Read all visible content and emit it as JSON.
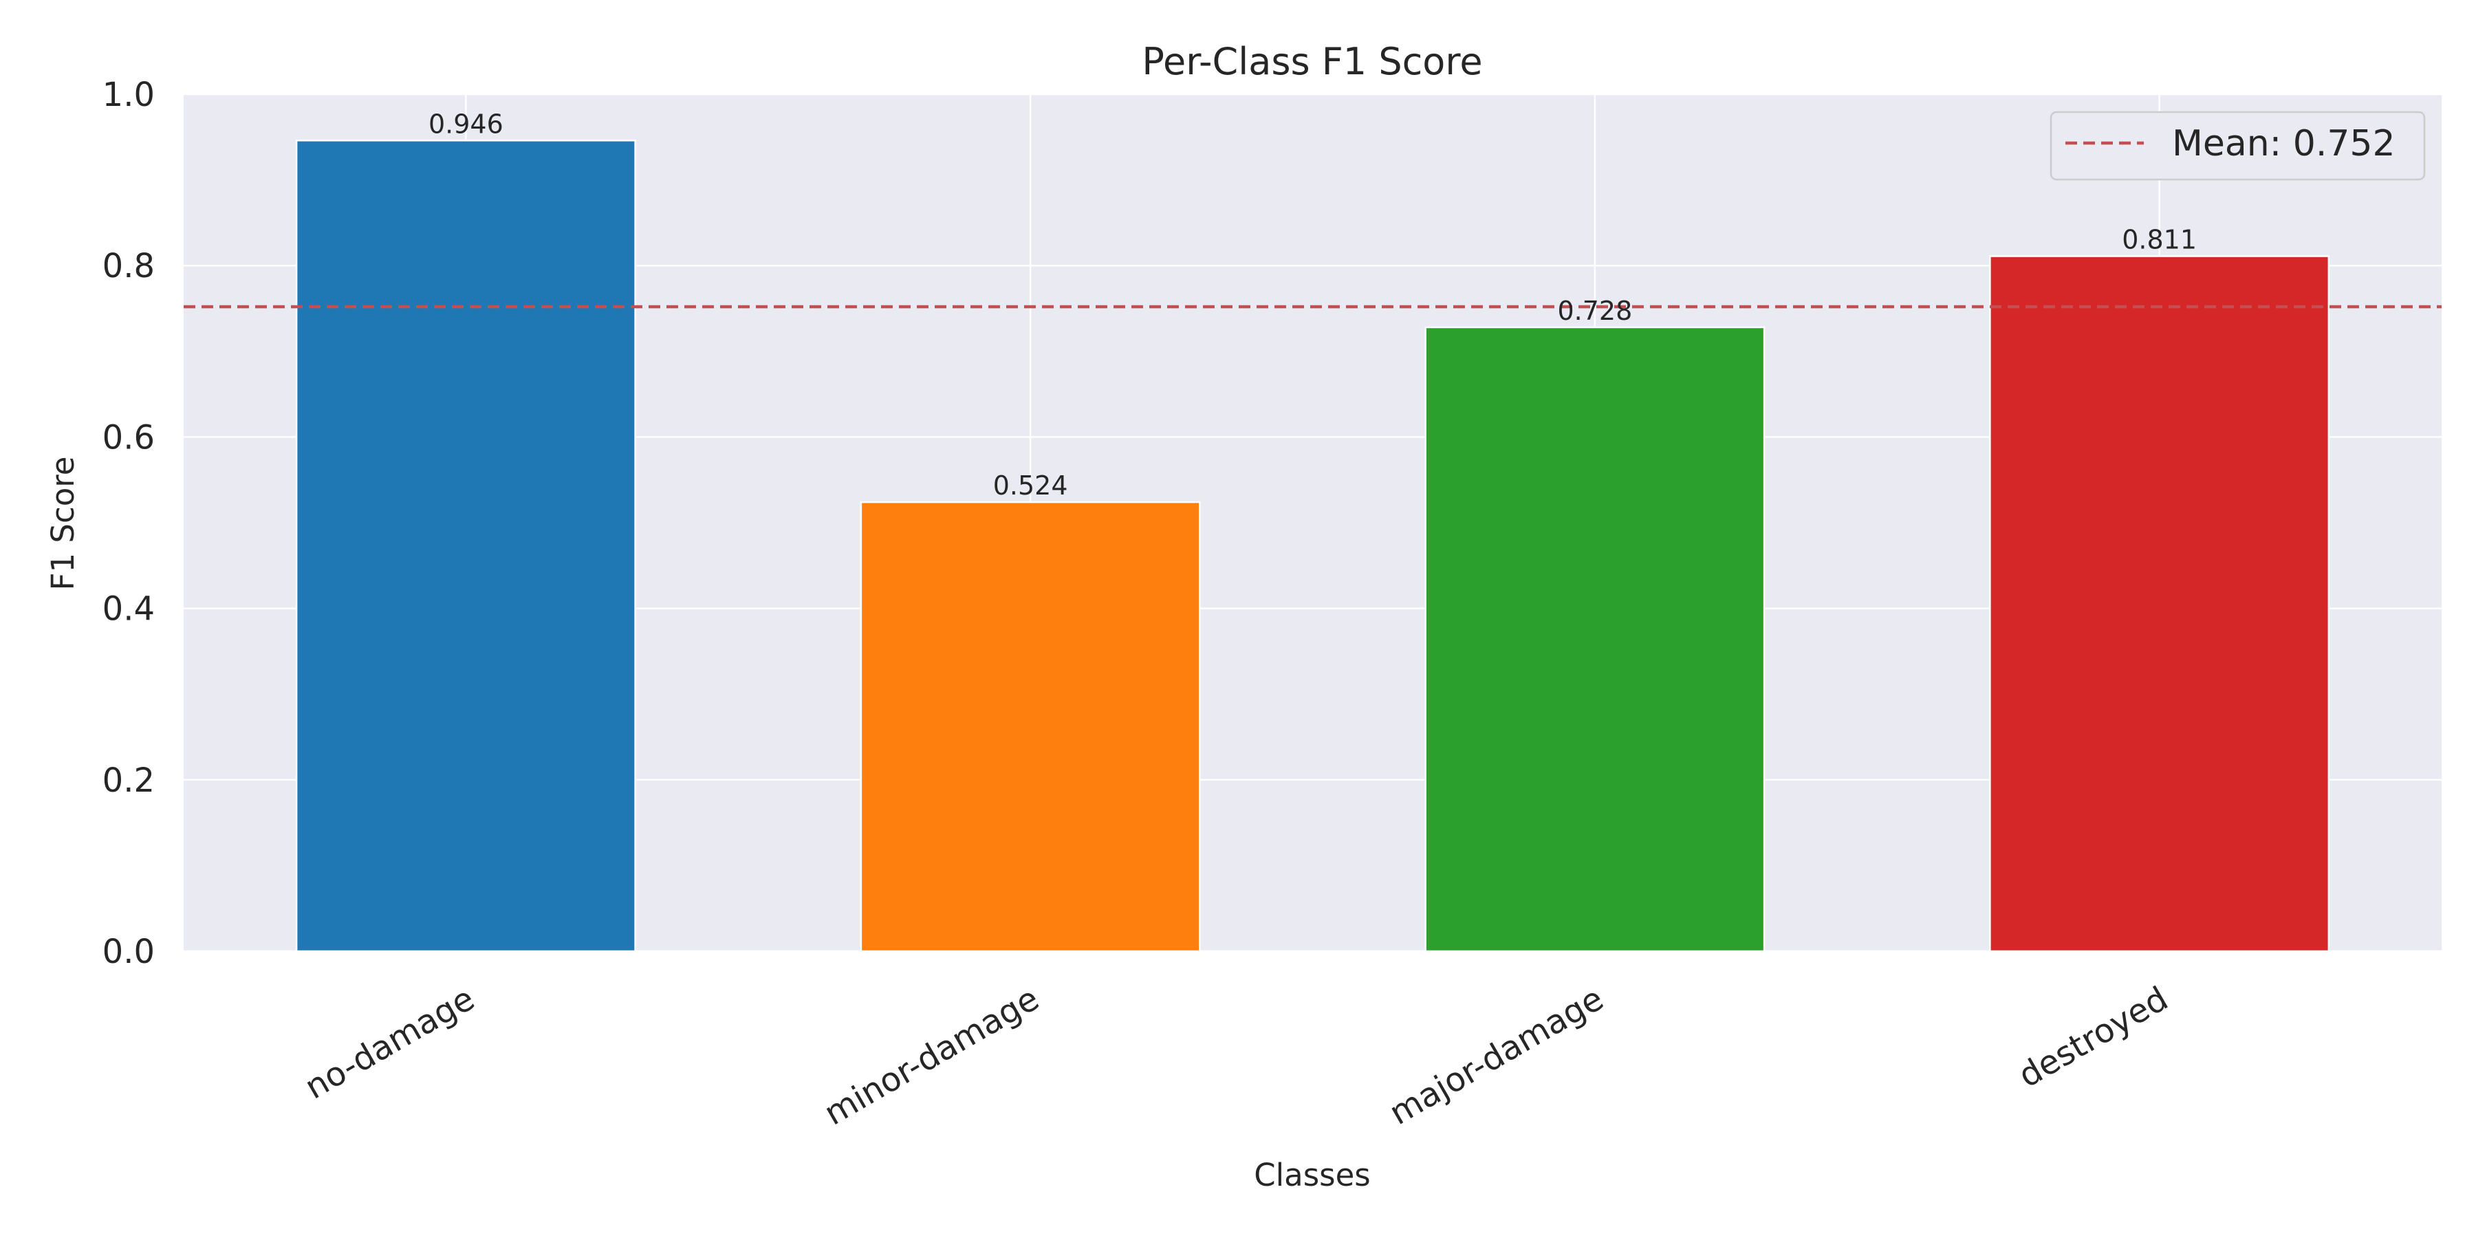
{
  "chart_data": {
    "type": "bar",
    "title": "Per-Class F1 Score",
    "xlabel": "Classes",
    "ylabel": "F1 Score",
    "categories": [
      "no-damage",
      "minor-damage",
      "major-damage",
      "destroyed"
    ],
    "values": [
      0.946,
      0.524,
      0.728,
      0.811
    ],
    "value_labels": [
      "0.946",
      "0.524",
      "0.728",
      "0.811"
    ],
    "colors": [
      "#1f77b4",
      "#ff7f0e",
      "#2ca02c",
      "#d62728"
    ],
    "ylim": [
      0,
      1.0
    ],
    "yticks": [
      0.0,
      0.2,
      0.4,
      0.6,
      0.8,
      1.0
    ],
    "ytick_labels": [
      "0.0",
      "0.2",
      "0.4",
      "0.6",
      "0.8",
      "1.0"
    ],
    "x_tick_rotation_deg": 30,
    "grid": true,
    "reference_line": {
      "value": 0.752,
      "label": "Mean: 0.752",
      "color": "#c44e52",
      "style": "dashed"
    },
    "legend": {
      "placement": "top-right",
      "entries": [
        "Mean: 0.752"
      ]
    }
  }
}
